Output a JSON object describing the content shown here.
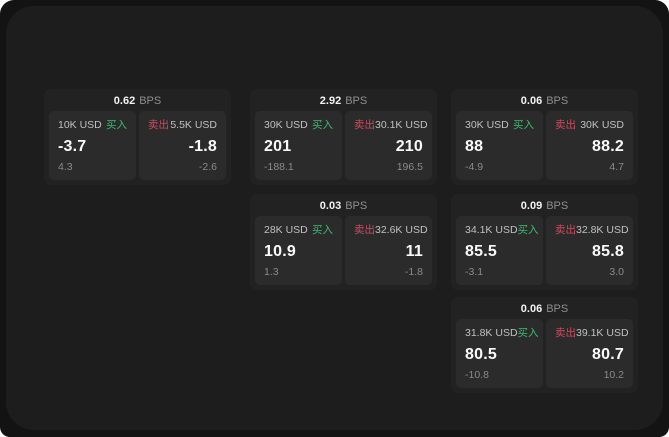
{
  "labels": {
    "bps_unit": "BPS",
    "buy": "买入",
    "sell": "卖出"
  },
  "colors": {
    "buy_green": "#3cba72",
    "sell_red": "#cf4a5e",
    "window_bg": "#131313",
    "surface_bg": "#1d1d1d",
    "card_bg": "#222222",
    "panel_bg": "#2b2b2b"
  },
  "cards": [
    {
      "bps": "0.62",
      "buy": {
        "amount": "10K USD",
        "value": "-3.7",
        "sub": "4.3"
      },
      "sell": {
        "amount": "5.5K USD",
        "value": "-1.8",
        "sub": "-2.6"
      }
    },
    {
      "bps": "2.92",
      "buy": {
        "amount": "30K USD",
        "value": "201",
        "sub": "-188.1"
      },
      "sell": {
        "amount": "30.1K USD",
        "value": "210",
        "sub": "196.5"
      }
    },
    {
      "bps": "0.06",
      "buy": {
        "amount": "30K USD",
        "value": "88",
        "sub": "-4.9"
      },
      "sell": {
        "amount": "30K USD",
        "value": "88.2",
        "sub": "4.7"
      }
    },
    {
      "bps": "0.03",
      "buy": {
        "amount": "28K USD",
        "value": "10.9",
        "sub": "1.3"
      },
      "sell": {
        "amount": "32.6K USD",
        "value": "11",
        "sub": "-1.8"
      }
    },
    {
      "bps": "0.09",
      "buy": {
        "amount": "34.1K USD",
        "value": "85.5",
        "sub": "-3.1"
      },
      "sell": {
        "amount": "32.8K USD",
        "value": "85.8",
        "sub": "3.0"
      }
    },
    {
      "bps": "0.06",
      "buy": {
        "amount": "31.8K USD",
        "value": "80.5",
        "sub": "-10.8"
      },
      "sell": {
        "amount": "39.1K USD",
        "value": "80.7",
        "sub": "10.2"
      }
    }
  ]
}
